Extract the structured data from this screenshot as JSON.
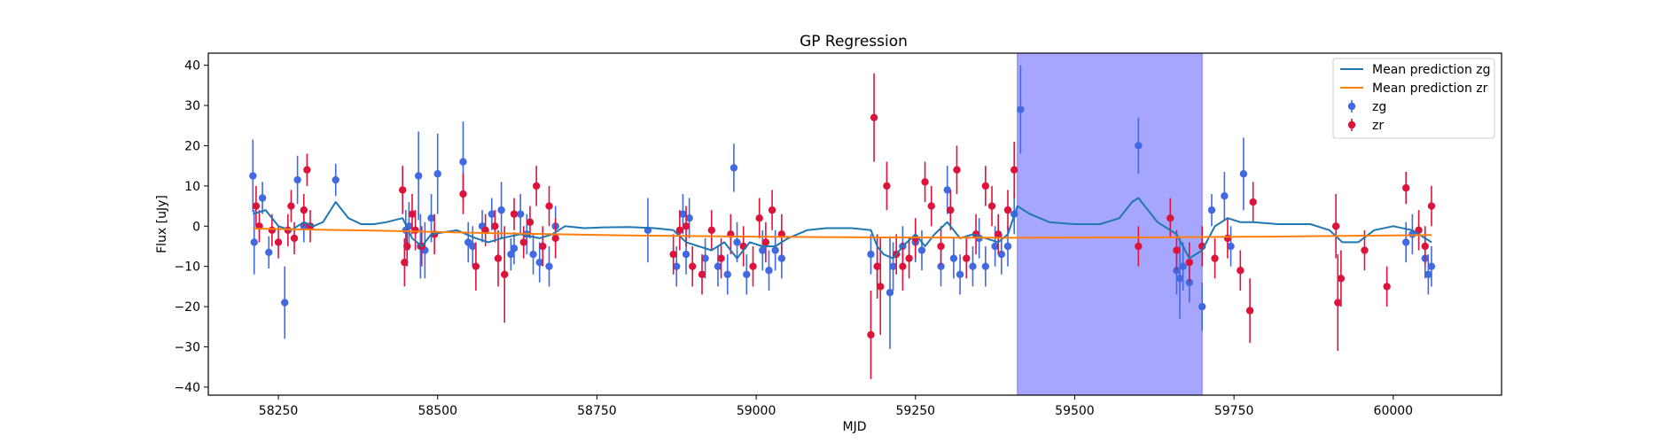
{
  "chart_data": {
    "type": "scatter",
    "title": "GP Regression",
    "xlabel": "MJD",
    "ylabel": "Flux [uJy]",
    "xlim": [
      58140,
      60170
    ],
    "ylim": [
      -42,
      43
    ],
    "xticks": [
      58250,
      58500,
      58750,
      59000,
      59250,
      59500,
      59750,
      60000
    ],
    "yticks": [
      -40,
      -30,
      -20,
      -10,
      0,
      10,
      20,
      30,
      40
    ],
    "grid": false,
    "legend_position": "top-right",
    "highlight_span": {
      "x0": 59410,
      "x1": 59700,
      "color": "#a6a6ff"
    },
    "colors": {
      "zg_line": "#1f77b4",
      "zr_line": "#ff7f0e",
      "zg_points": "#4169e1",
      "zr_points": "#dc143c"
    },
    "series": [
      {
        "name": "Mean prediction zg",
        "kind": "line",
        "color": "#1f77b4",
        "x": [
          58210,
          58230,
          58250,
          58270,
          58290,
          58305,
          58320,
          58340,
          58360,
          58380,
          58400,
          58420,
          58445,
          58460,
          58475,
          58490,
          58510,
          58530,
          58545,
          58560,
          58580,
          58600,
          58630,
          58660,
          58680,
          58700,
          58730,
          58760,
          58800,
          58840,
          58870,
          58890,
          58910,
          58930,
          58950,
          58970,
          58990,
          59010,
          59030,
          59050,
          59080,
          59110,
          59150,
          59180,
          59190,
          59200,
          59215,
          59230,
          59250,
          59265,
          59280,
          59300,
          59320,
          59340,
          59360,
          59380,
          59395,
          59410,
          59430,
          59460,
          59500,
          59540,
          59570,
          59590,
          59600,
          59610,
          59630,
          59660,
          59680,
          59700,
          59720,
          59740,
          59760,
          59780,
          59820,
          59870,
          59900,
          59920,
          59945,
          59970,
          60000,
          60030,
          60060
        ],
        "y": [
          3,
          4,
          0,
          -1,
          1,
          0,
          1,
          6,
          2,
          0.5,
          0.5,
          1,
          2,
          -3,
          -5,
          -2,
          -1.5,
          -1,
          -2,
          -3,
          -4,
          -3,
          -2,
          -3,
          -2,
          0,
          -0.5,
          -0.3,
          -0.2,
          -0.5,
          -1,
          -4,
          -5,
          -6,
          -4,
          -8,
          -4,
          -5,
          -5,
          -3,
          -1,
          -0.5,
          -0.5,
          -1,
          -5,
          -7,
          -8,
          -5,
          -2,
          -5,
          -2,
          1,
          -3,
          -2,
          -3,
          -4,
          -2,
          5,
          3,
          1,
          0.5,
          0.5,
          2,
          6,
          7,
          5,
          1,
          -2,
          -8,
          -6,
          0,
          2,
          1,
          1,
          0.5,
          0.5,
          -1,
          -4,
          -4,
          -1,
          0,
          -1,
          -4
        ]
      },
      {
        "name": "Mean prediction zr",
        "kind": "line",
        "color": "#ff7f0e",
        "x": [
          58210,
          58400,
          58600,
          58800,
          59000,
          59200,
          59400,
          59600,
          59800,
          60000,
          60060
        ],
        "y": [
          -0.6,
          -1.1,
          -1.8,
          -2.3,
          -2.6,
          -2.8,
          -2.9,
          -2.8,
          -2.6,
          -2.3,
          -2.2
        ]
      },
      {
        "name": "zg",
        "kind": "errorbar",
        "color": "#4169e1",
        "points": [
          [
            58210,
            12.5,
            9
          ],
          [
            58212,
            -4,
            8
          ],
          [
            58225,
            7,
            4
          ],
          [
            58235,
            -6.5,
            4
          ],
          [
            58260,
            -19,
            9
          ],
          [
            58280,
            11.5,
            6
          ],
          [
            58290,
            0,
            4
          ],
          [
            58340,
            11.5,
            4
          ],
          [
            58450,
            -1,
            5
          ],
          [
            58455,
            0,
            6
          ],
          [
            58470,
            12.5,
            11
          ],
          [
            58473,
            -5,
            8
          ],
          [
            58480,
            -6,
            7
          ],
          [
            58490,
            2,
            6
          ],
          [
            58500,
            13,
            10
          ],
          [
            58540,
            16,
            10
          ],
          [
            58548,
            -4,
            5
          ],
          [
            58555,
            -5,
            5
          ],
          [
            58570,
            0,
            4
          ],
          [
            58585,
            3,
            4
          ],
          [
            58600,
            4,
            7
          ],
          [
            58615,
            -7,
            4
          ],
          [
            58620,
            -5.5,
            4
          ],
          [
            58630,
            3,
            5
          ],
          [
            58640,
            -2,
            5
          ],
          [
            58650,
            -7,
            5
          ],
          [
            58660,
            -9,
            5
          ],
          [
            58675,
            -10,
            5
          ],
          [
            58685,
            0,
            5
          ],
          [
            58830,
            -1,
            8
          ],
          [
            58875,
            -10,
            5
          ],
          [
            58885,
            3,
            5
          ],
          [
            58890,
            -7,
            5
          ],
          [
            58895,
            2,
            5
          ],
          [
            58920,
            -8,
            5
          ],
          [
            58940,
            -10,
            5
          ],
          [
            58955,
            -12,
            5
          ],
          [
            58965,
            14.5,
            6
          ],
          [
            58970,
            -4,
            5
          ],
          [
            58985,
            -12,
            5
          ],
          [
            59010,
            -6,
            5
          ],
          [
            59020,
            -11,
            5
          ],
          [
            59030,
            -6,
            5
          ],
          [
            59040,
            -8,
            5
          ],
          [
            59180,
            -7,
            5
          ],
          [
            59190,
            -10,
            5
          ],
          [
            59210,
            -16.5,
            14
          ],
          [
            59215,
            -10,
            6
          ],
          [
            59230,
            -5,
            5
          ],
          [
            59250,
            -4,
            5
          ],
          [
            59260,
            -6,
            5
          ],
          [
            59290,
            -10,
            5
          ],
          [
            59300,
            9,
            6
          ],
          [
            59310,
            -8,
            5
          ],
          [
            59320,
            -12,
            5
          ],
          [
            59340,
            -10,
            5
          ],
          [
            59350,
            -3,
            5
          ],
          [
            59360,
            -10,
            5
          ],
          [
            59375,
            -5,
            5
          ],
          [
            59385,
            -7,
            5
          ],
          [
            59395,
            -5,
            5
          ],
          [
            59405,
            3,
            5
          ],
          [
            59415,
            29,
            11
          ],
          [
            59600,
            20,
            7
          ],
          [
            59660,
            -11,
            6
          ],
          [
            59665,
            -13,
            10
          ],
          [
            59670,
            -10,
            6
          ],
          [
            59680,
            -14,
            5
          ],
          [
            59700,
            -20,
            6
          ],
          [
            59715,
            4,
            4
          ],
          [
            59735,
            7.5,
            6
          ],
          [
            59745,
            -5,
            5
          ],
          [
            59765,
            13,
            9
          ],
          [
            60020,
            -4,
            5
          ],
          [
            60030,
            -2,
            5
          ],
          [
            60050,
            -8,
            5
          ],
          [
            60055,
            -12,
            5
          ],
          [
            60060,
            -10,
            5
          ]
        ]
      },
      {
        "name": "zr",
        "kind": "errorbar",
        "color": "#dc143c",
        "points": [
          [
            58215,
            5,
            5
          ],
          [
            58220,
            0,
            4
          ],
          [
            58240,
            -1,
            4
          ],
          [
            58250,
            -4,
            4
          ],
          [
            58265,
            -1,
            4
          ],
          [
            58270,
            5,
            4
          ],
          [
            58275,
            -3,
            4
          ],
          [
            58290,
            4,
            4
          ],
          [
            58295,
            14,
            4
          ],
          [
            58300,
            0,
            4
          ],
          [
            58445,
            9,
            6
          ],
          [
            58448,
            -9,
            6
          ],
          [
            58452,
            -5,
            5
          ],
          [
            58460,
            3,
            5
          ],
          [
            58465,
            -1,
            5
          ],
          [
            58475,
            -5,
            5
          ],
          [
            58495,
            -2,
            5
          ],
          [
            58540,
            8,
            5
          ],
          [
            58560,
            -10,
            6
          ],
          [
            58575,
            -1,
            4
          ],
          [
            58590,
            0,
            4
          ],
          [
            58595,
            -8,
            7
          ],
          [
            58605,
            -12,
            12
          ],
          [
            58620,
            3,
            4
          ],
          [
            58635,
            -4,
            4
          ],
          [
            58645,
            1,
            4
          ],
          [
            58655,
            10,
            5
          ],
          [
            58665,
            -5,
            5
          ],
          [
            58675,
            5,
            5
          ],
          [
            58685,
            -3,
            5
          ],
          [
            58870,
            -7,
            5
          ],
          [
            58880,
            -1,
            5
          ],
          [
            58890,
            0,
            5
          ],
          [
            58900,
            -10,
            5
          ],
          [
            58915,
            -12,
            5
          ],
          [
            58930,
            -1,
            5
          ],
          [
            58945,
            -8,
            5
          ],
          [
            58960,
            -2,
            5
          ],
          [
            58980,
            -5,
            5
          ],
          [
            58995,
            -10,
            5
          ],
          [
            59005,
            2,
            5
          ],
          [
            59015,
            -4,
            5
          ],
          [
            59025,
            4,
            5
          ],
          [
            59040,
            -2,
            5
          ],
          [
            59180,
            -27,
            11
          ],
          [
            59185,
            27,
            11
          ],
          [
            59190,
            -10,
            8
          ],
          [
            59195,
            -15,
            12
          ],
          [
            59205,
            10,
            6
          ],
          [
            59220,
            -7,
            5
          ],
          [
            59230,
            -10,
            6
          ],
          [
            59240,
            -8,
            5
          ],
          [
            59250,
            -3,
            5
          ],
          [
            59265,
            11,
            5
          ],
          [
            59275,
            5,
            5
          ],
          [
            59290,
            -5,
            5
          ],
          [
            59305,
            4,
            5
          ],
          [
            59315,
            14,
            6
          ],
          [
            59330,
            -8,
            5
          ],
          [
            59345,
            -2,
            5
          ],
          [
            59360,
            10,
            5
          ],
          [
            59370,
            5,
            5
          ],
          [
            59380,
            -2,
            5
          ],
          [
            59395,
            4,
            5
          ],
          [
            59405,
            14,
            7
          ],
          [
            59600,
            -5,
            5
          ],
          [
            59650,
            2,
            5
          ],
          [
            59660,
            -6,
            5
          ],
          [
            59680,
            -9,
            5
          ],
          [
            59700,
            -5,
            5
          ],
          [
            59720,
            -8,
            5
          ],
          [
            59740,
            -3,
            5
          ],
          [
            59760,
            -11,
            5
          ],
          [
            59775,
            -21,
            8
          ],
          [
            59780,
            6,
            5
          ],
          [
            59910,
            0,
            8
          ],
          [
            59913,
            -19,
            12
          ],
          [
            59918,
            -13,
            7
          ],
          [
            59955,
            -6,
            5
          ],
          [
            59990,
            -15,
            5
          ],
          [
            60020,
            9.5,
            4
          ],
          [
            60040,
            -1,
            5
          ],
          [
            60050,
            -5,
            5
          ],
          [
            60060,
            5,
            5
          ]
        ]
      }
    ]
  }
}
